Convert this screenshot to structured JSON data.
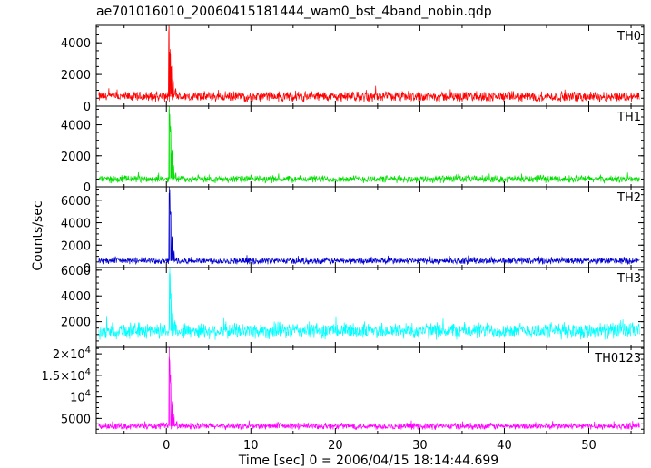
{
  "title": "ae701016010_20060415181444_wam0_bst_4band_nobin.qdp",
  "chart_data": {
    "type": "line",
    "title": "ae701016010_20060415181444_wam0_bst_4band_nobin.qdp",
    "xlabel": "Time [sec] 0 = 2006/04/15 18:14:44.699",
    "ylabel": "Counts/sec",
    "xlim": [
      -8.3,
      56.5
    ],
    "x_ticks": [
      0,
      10,
      20,
      30,
      40,
      50
    ],
    "grid": false,
    "panels": [
      {
        "name": "TH0",
        "color": "#ff0000",
        "ylim": [
          0,
          5100
        ],
        "y_ticks": [
          {
            "v": 0,
            "label": "0"
          },
          {
            "v": 2000,
            "label": "2000"
          },
          {
            "v": 4000,
            "label": "4000"
          }
        ],
        "series": {
          "x_start": -8.0,
          "x_end": 56.0,
          "baseline": 600,
          "noise": 380,
          "spikes": [
            {
              "x": 0.3,
              "y": 5100
            },
            {
              "x": 0.45,
              "y": 3600
            },
            {
              "x": 0.6,
              "y": 2500
            },
            {
              "x": 0.8,
              "y": 1700
            },
            {
              "x": 1.1,
              "y": 1100
            }
          ]
        }
      },
      {
        "name": "TH1",
        "color": "#00e000",
        "ylim": [
          0,
          5200
        ],
        "y_ticks": [
          {
            "v": 0,
            "label": "0"
          },
          {
            "v": 2000,
            "label": "2000"
          },
          {
            "v": 4000,
            "label": "4000"
          }
        ],
        "series": {
          "x_start": -8.0,
          "x_end": 56.0,
          "baseline": 500,
          "noise": 280,
          "spikes": [
            {
              "x": 0.35,
              "y": 5200
            },
            {
              "x": 0.5,
              "y": 3900
            },
            {
              "x": 0.65,
              "y": 2400
            },
            {
              "x": 0.85,
              "y": 1400
            },
            {
              "x": 1.1,
              "y": 900
            }
          ]
        }
      },
      {
        "name": "TH2",
        "color": "#0000d0",
        "ylim": [
          0,
          7200
        ],
        "y_ticks": [
          {
            "v": 0,
            "label": "0"
          },
          {
            "v": 2000,
            "label": "2000"
          },
          {
            "v": 4000,
            "label": "4000"
          },
          {
            "v": 6000,
            "label": "6000"
          }
        ],
        "series": {
          "x_start": -8.0,
          "x_end": 56.0,
          "baseline": 600,
          "noise": 350,
          "spikes": [
            {
              "x": 0.35,
              "y": 7200
            },
            {
              "x": 0.5,
              "y": 5000
            },
            {
              "x": 0.7,
              "y": 2800
            },
            {
              "x": 0.9,
              "y": 1500
            },
            {
              "x": 1.2,
              "y": 900
            }
          ]
        }
      },
      {
        "name": "TH3",
        "color": "#00ffff",
        "ylim": [
          0,
          6200
        ],
        "y_ticks": [
          {
            "v": 2000,
            "label": "2000"
          },
          {
            "v": 4000,
            "label": "4000"
          },
          {
            "v": 6000,
            "label": "6000"
          }
        ],
        "series": {
          "x_start": -8.0,
          "x_end": 56.0,
          "baseline": 1300,
          "noise": 750,
          "spikes": [
            {
              "x": 0.4,
              "y": 6200
            },
            {
              "x": 0.55,
              "y": 4200
            },
            {
              "x": 0.75,
              "y": 2900
            },
            {
              "x": 1.0,
              "y": 2100
            }
          ]
        }
      },
      {
        "name": "TH0123",
        "color": "#ff00ff",
        "ylim": [
          1500,
          21500
        ],
        "y_ticks": [
          {
            "v": 5000,
            "label": "5000"
          },
          {
            "v": 10000,
            "base": "10",
            "exp": "4"
          },
          {
            "v": 15000,
            "base": "1.5×10",
            "exp": "4"
          },
          {
            "v": 20000,
            "base": "2×10",
            "exp": "4"
          }
        ],
        "series": {
          "x_start": -8.0,
          "x_end": 56.0,
          "baseline": 3200,
          "noise": 900,
          "spikes": [
            {
              "x": 0.35,
              "y": 21500
            },
            {
              "x": 0.5,
              "y": 15000
            },
            {
              "x": 0.7,
              "y": 9000
            },
            {
              "x": 0.9,
              "y": 6000
            },
            {
              "x": 1.2,
              "y": 4300
            }
          ]
        }
      }
    ]
  }
}
